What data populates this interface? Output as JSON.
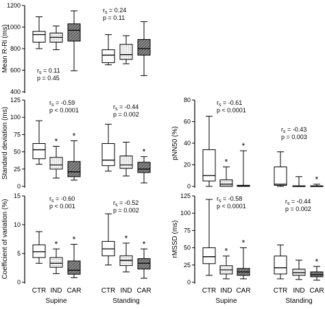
{
  "figure": {
    "colors": {
      "ctr": "#ffffff",
      "ind": "#d9d9d9",
      "car": "#7f7f7f",
      "line": "#000000"
    },
    "fill_patterns": {
      "ctr": "none",
      "ind": "dotted",
      "car": "hatched"
    }
  },
  "chart_data": [
    {
      "type": "boxplot",
      "ylabel": "Mean R-Ri (ms)",
      "ylim": [
        400,
        1200
      ],
      "yticks": [
        400,
        600,
        800,
        1000,
        1200
      ],
      "groups": [
        {
          "name": "Supine",
          "stat_lines": [
            "rs = 0.11",
            "p = 0.45"
          ],
          "boxes": [
            {
              "category": "CTR",
              "min": 800,
              "q1": 860,
              "median": 930,
              "q3": 960,
              "max": 1095,
              "star": false
            },
            {
              "category": "IND",
              "min": 790,
              "q1": 860,
              "median": 905,
              "q3": 945,
              "max": 1010,
              "star": false
            },
            {
              "category": "CAR",
              "min": 595,
              "q1": 870,
              "median": 970,
              "q3": 1030,
              "max": 1150,
              "star": false
            }
          ]
        },
        {
          "name": "Standing",
          "stat_lines": [
            "rs = 0.24",
            "p = 0.11"
          ],
          "boxes": [
            {
              "category": "CTR",
              "min": 650,
              "q1": 670,
              "median": 740,
              "q3": 790,
              "max": 930,
              "star": false
            },
            {
              "category": "IND",
              "min": 660,
              "q1": 700,
              "median": 745,
              "q3": 840,
              "max": 920,
              "star": false
            },
            {
              "category": "CAR",
              "min": 550,
              "q1": 740,
              "median": 800,
              "q3": 885,
              "max": 1050,
              "star": false
            }
          ]
        }
      ]
    },
    {
      "type": "boxplot",
      "ylabel": "Standard deviation (ms)",
      "ylim": [
        0,
        125
      ],
      "yticks": [
        0,
        25,
        50,
        75,
        100,
        125
      ],
      "groups": [
        {
          "name": "Supine",
          "stat_lines": [
            "rs = -0.59",
            "p < 0.0001"
          ],
          "boxes": [
            {
              "category": "CTR",
              "min": 32,
              "q1": 40,
              "median": 53,
              "q3": 62,
              "max": 95,
              "star": false
            },
            {
              "category": "IND",
              "min": 12,
              "q1": 25,
              "median": 31,
              "q3": 42,
              "max": 58,
              "star": true
            },
            {
              "category": "CAR",
              "min": 9,
              "q1": 14,
              "median": 21,
              "q3": 36,
              "max": 66,
              "star": true
            }
          ]
        },
        {
          "name": "Standing",
          "stat_lines": [
            "rs = -0.44",
            "p = 0.002"
          ],
          "boxes": [
            {
              "category": "CTR",
              "min": 22,
              "q1": 30,
              "median": 38,
              "q3": 62,
              "max": 90,
              "star": false
            },
            {
              "category": "IND",
              "min": 15,
              "q1": 26,
              "median": 31,
              "q3": 44,
              "max": 64,
              "star": false
            },
            {
              "category": "CAR",
              "min": 5,
              "q1": 20,
              "median": 25,
              "q3": 35,
              "max": 43,
              "star": true
            }
          ]
        }
      ]
    },
    {
      "type": "boxplot",
      "ylabel": "pNN50 (%)",
      "ylim": [
        0,
        80
      ],
      "yticks": [
        0,
        20,
        40,
        60,
        80
      ],
      "groups": [
        {
          "name": "Supine",
          "stat_lines": [
            "rs = -0.61",
            "p < 0.0001"
          ],
          "boxes": [
            {
              "category": "CTR",
              "min": 0,
              "q1": 5,
              "median": 10,
              "q3": 34,
              "max": 65,
              "star": false
            },
            {
              "category": "IND",
              "min": 0,
              "q1": 0,
              "median": 2,
              "q3": 6,
              "max": 18,
              "star": true
            },
            {
              "category": "CAR",
              "min": 0,
              "q1": 0,
              "median": 0,
              "q3": 1,
              "max": 33,
              "star": true
            }
          ]
        },
        {
          "name": "Standing",
          "stat_lines": [
            "rs = -0.43",
            "p = 0.003"
          ],
          "boxes": [
            {
              "category": "CTR",
              "min": 0,
              "q1": 1,
              "median": 2,
              "q3": 18,
              "max": 32,
              "star": false
            },
            {
              "category": "IND",
              "min": 0,
              "q1": 0,
              "median": 0,
              "q3": 0.5,
              "max": 9,
              "star": false
            },
            {
              "category": "CAR",
              "min": 0,
              "q1": 0,
              "median": 0,
              "q3": 0.5,
              "max": 2,
              "star": true
            }
          ]
        }
      ]
    },
    {
      "type": "boxplot",
      "ylabel": "Coefficient of variation (%)",
      "ylim": [
        0,
        15
      ],
      "yticks": [
        0,
        5,
        10,
        15
      ],
      "groups": [
        {
          "name": "Supine",
          "stat_lines": [
            "rs = -0.60",
            "p < 0.001"
          ],
          "boxes": [
            {
              "category": "CTR",
              "min": 3.3,
              "q1": 4.3,
              "median": 5.3,
              "q3": 6.5,
              "max": 8.8,
              "star": false
            },
            {
              "category": "IND",
              "min": 1.5,
              "q1": 2.6,
              "median": 3.3,
              "q3": 4.3,
              "max": 5.8,
              "star": true
            },
            {
              "category": "CAR",
              "min": 0.8,
              "q1": 1.4,
              "median": 2.1,
              "q3": 3.7,
              "max": 6.6,
              "star": true
            }
          ]
        },
        {
          "name": "Standing",
          "stat_lines": [
            "rs = -0.52",
            "p = 0.002"
          ],
          "boxes": [
            {
              "category": "CTR",
              "min": 3.0,
              "q1": 4.6,
              "median": 5.8,
              "q3": 7.1,
              "max": 11.9,
              "star": false
            },
            {
              "category": "IND",
              "min": 1.8,
              "q1": 2.9,
              "median": 3.8,
              "q3": 4.6,
              "max": 6.8,
              "star": true
            },
            {
              "category": "CAR",
              "min": 0.7,
              "q1": 2.3,
              "median": 3.3,
              "q3": 4.1,
              "max": 5.8,
              "star": true
            }
          ]
        }
      ]
    },
    {
      "type": "boxplot",
      "ylabel": "rMSSD (ms)",
      "ylim": [
        0,
        125
      ],
      "yticks": [
        0,
        25,
        50,
        75,
        100,
        125
      ],
      "groups": [
        {
          "name": "Supine",
          "stat_lines": [
            "rs = -0.58",
            "p < 0.0001"
          ],
          "boxes": [
            {
              "category": "CTR",
              "min": 10,
              "q1": 27,
              "median": 37,
              "q3": 50,
              "max": 120,
              "star": false
            },
            {
              "category": "IND",
              "min": 5,
              "q1": 12,
              "median": 18,
              "q3": 24,
              "max": 38,
              "star": true
            },
            {
              "category": "CAR",
              "min": 5,
              "q1": 10,
              "median": 15,
              "q3": 20,
              "max": 50,
              "star": true
            }
          ]
        },
        {
          "name": "Standing",
          "stat_lines": [
            "rs = -0.44",
            "p = 0.002"
          ],
          "boxes": [
            {
              "category": "CTR",
              "min": 5,
              "q1": 12,
              "median": 21,
              "q3": 38,
              "max": 54,
              "star": false
            },
            {
              "category": "IND",
              "min": 4,
              "q1": 10,
              "median": 14,
              "q3": 19,
              "max": 32,
              "star": false
            },
            {
              "category": "CAR",
              "min": 3,
              "q1": 8,
              "median": 11,
              "q3": 15,
              "max": 23,
              "star": true
            }
          ]
        }
      ]
    }
  ]
}
